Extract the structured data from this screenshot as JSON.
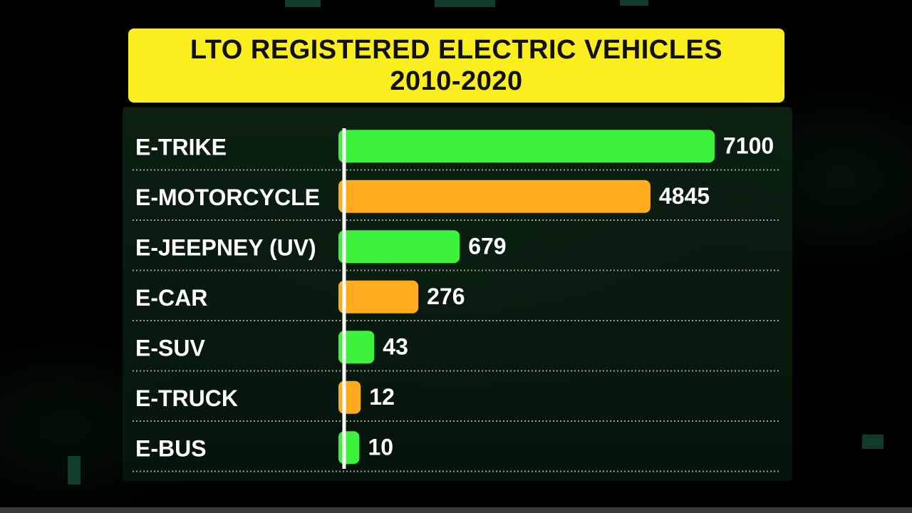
{
  "title": {
    "line1": "LTO REGISTERED ELECTRIC VEHICLES",
    "line2": "2010-2020"
  },
  "colors": {
    "green": "#3df23d",
    "orange": "#ffad1f",
    "title_bg": "#fbee1f"
  },
  "chart_data": {
    "type": "bar",
    "orientation": "horizontal",
    "categories": [
      "E-TRIKE",
      "E-MOTORCYCLE",
      "E-JEEPNEY (UV)",
      "E-CAR",
      "E-SUV",
      "E-TRUCK",
      "E-BUS"
    ],
    "values": [
      7100,
      4845,
      679,
      276,
      43,
      12,
      10
    ],
    "value_labels": [
      "7100",
      "4845",
      "679",
      "276",
      "43",
      "12",
      "10"
    ],
    "bar_colors": [
      "#3df23d",
      "#ffad1f",
      "#3df23d",
      "#ffad1f",
      "#3df23d",
      "#ffad1f",
      "#3df23d"
    ],
    "title": "LTO REGISTERED ELECTRIC VEHICLES 2010-2020",
    "scale": "nonlinear",
    "grid": false,
    "legend": "none"
  }
}
